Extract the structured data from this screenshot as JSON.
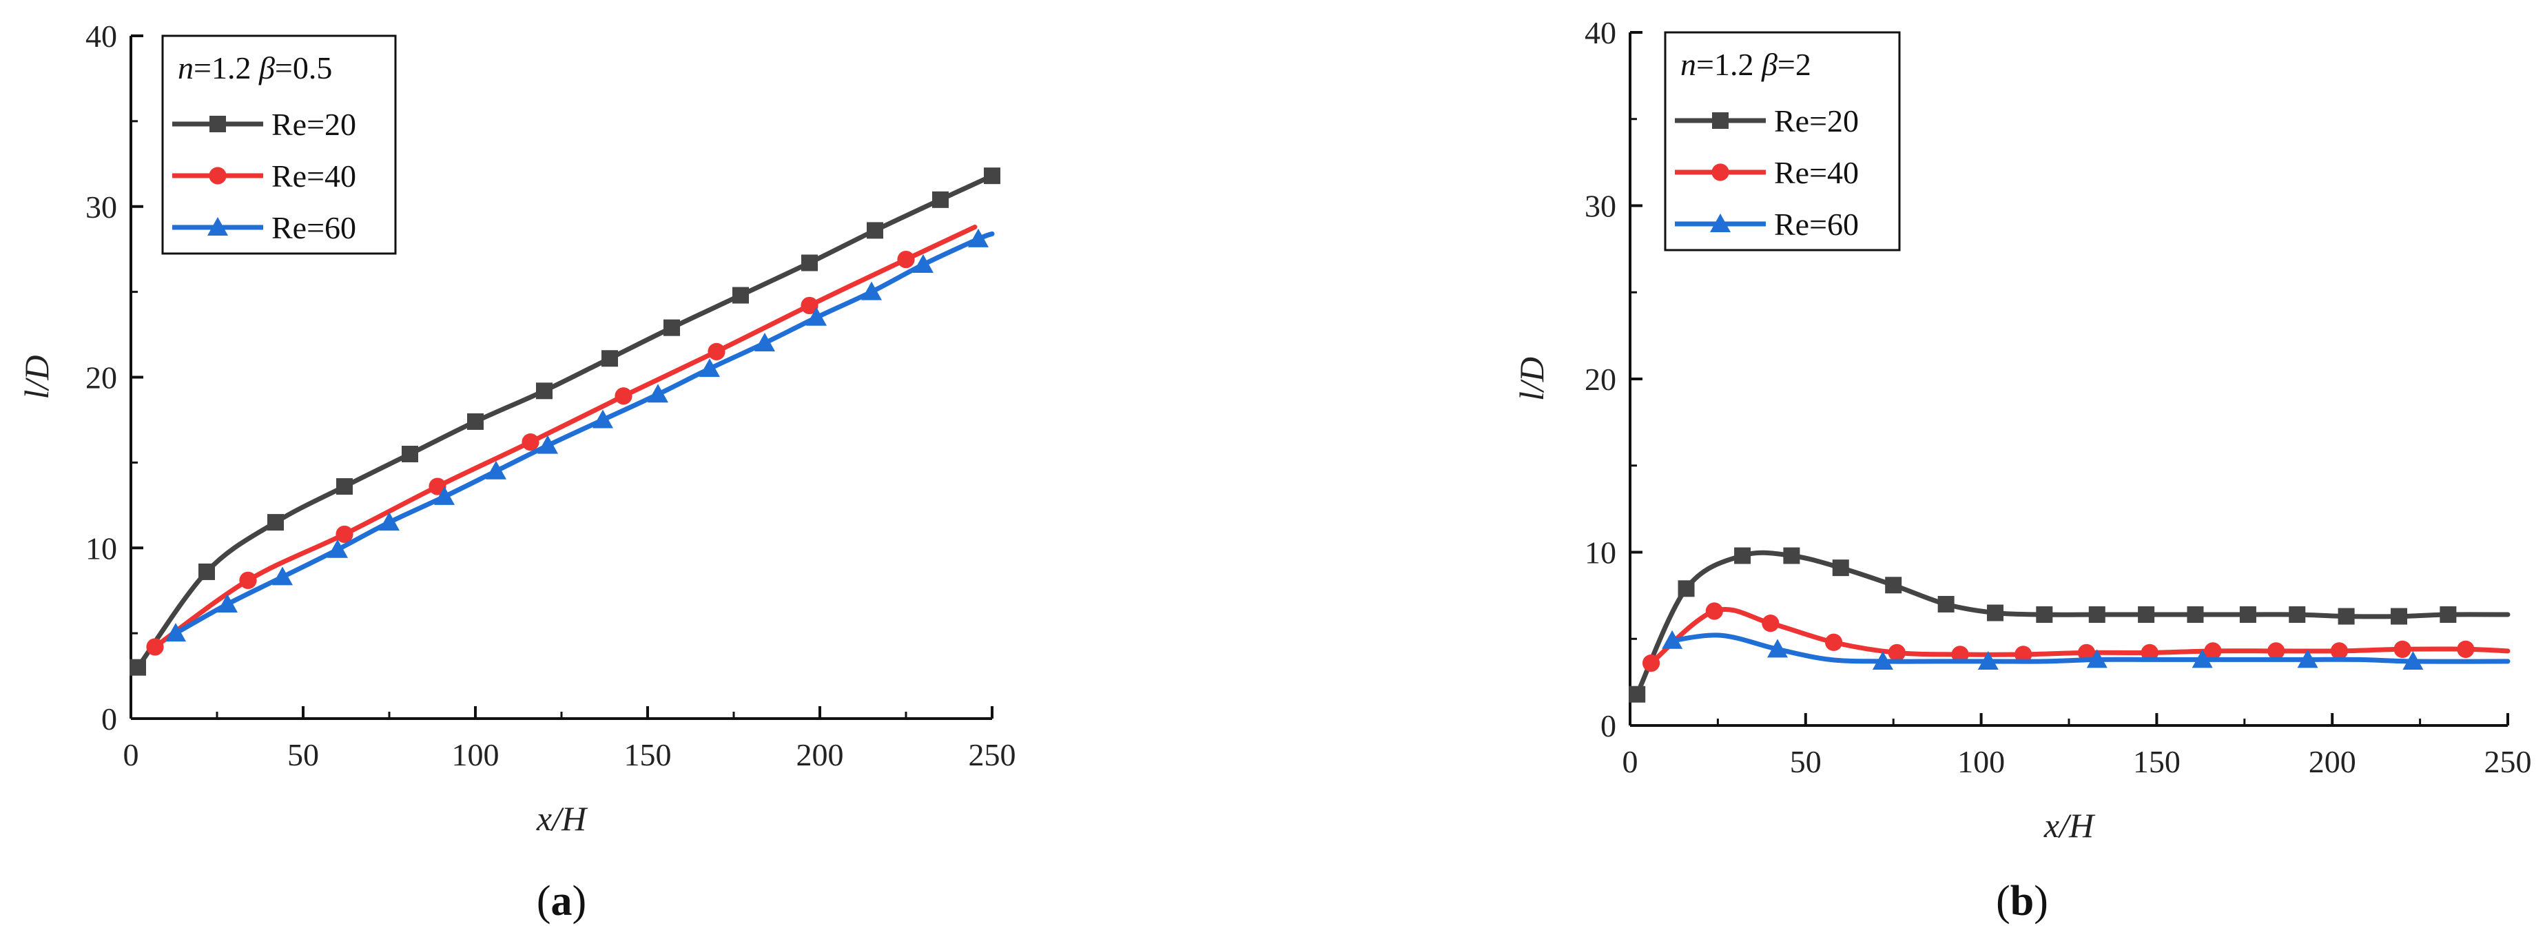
{
  "chart_data": [
    {
      "type": "line",
      "panel": "a",
      "caption_open": "(",
      "caption_letter": "a",
      "caption_close": ")",
      "legend_title_n": "n",
      "legend_title_n_value": "=1.2 ",
      "legend_title_beta": "β",
      "legend_title_beta_value": "=0.5",
      "xlabel": "x/H",
      "ylabel": "l/D",
      "xlim": [
        0,
        250
      ],
      "ylim": [
        0,
        40
      ],
      "xticks": [
        0,
        50,
        100,
        150,
        200,
        250
      ],
      "yticks": [
        0,
        10,
        20,
        30,
        40
      ],
      "legend_position": "top-left",
      "series": [
        {
          "name": "Re=20",
          "color": "#444444",
          "marker": "square",
          "x": [
            2,
            22,
            42,
            62,
            81,
            100,
            120,
            139,
            157,
            177,
            197,
            216,
            235,
            250
          ],
          "y": [
            3.0,
            8.6,
            11.5,
            13.6,
            15.5,
            17.4,
            19.2,
            21.1,
            22.9,
            24.8,
            26.7,
            28.6,
            30.4,
            31.8
          ]
        },
        {
          "name": "Re=40",
          "color": "#ee3333",
          "marker": "circle",
          "x": [
            7,
            34,
            62,
            89,
            116,
            143,
            170,
            197,
            225,
            245
          ],
          "y": [
            4.2,
            8.1,
            10.8,
            13.6,
            16.2,
            18.9,
            21.5,
            24.2,
            26.9,
            28.8
          ],
          "marker_x": [
            7,
            34,
            62,
            89,
            116,
            143,
            170,
            197,
            225
          ]
        },
        {
          "name": "Re=60",
          "color": "#1f6fd6",
          "marker": "triangle",
          "x": [
            13,
            28,
            44,
            60,
            75,
            91,
            106,
            121,
            137,
            153,
            168,
            184,
            199,
            215,
            230,
            246,
            250
          ],
          "y": [
            5.0,
            6.7,
            8.3,
            9.9,
            11.5,
            13.0,
            14.5,
            16.0,
            17.5,
            19.0,
            20.5,
            22.0,
            23.5,
            25.0,
            26.6,
            28.1,
            28.4
          ],
          "marker_x": [
            13,
            28,
            44,
            60,
            75,
            91,
            106,
            121,
            137,
            153,
            168,
            184,
            199,
            215,
            230,
            246
          ]
        }
      ]
    },
    {
      "type": "line",
      "panel": "b",
      "caption_open": "(",
      "caption_letter": "b",
      "caption_close": ")",
      "legend_title_n": "n",
      "legend_title_n_value": "=1.2 ",
      "legend_title_beta": "β",
      "legend_title_beta_value": "=2",
      "xlabel": "x/H",
      "ylabel": "l/D",
      "xlim": [
        0,
        250
      ],
      "ylim": [
        0,
        40
      ],
      "xticks": [
        0,
        50,
        100,
        150,
        200,
        250
      ],
      "yticks": [
        0,
        10,
        20,
        30,
        40
      ],
      "legend_position": "top-left",
      "series": [
        {
          "name": "Re=20",
          "color": "#444444",
          "marker": "square",
          "x": [
            2,
            16,
            32,
            46,
            60,
            75,
            90,
            104,
            118,
            133,
            147,
            161,
            176,
            190,
            204,
            219,
            233,
            250
          ],
          "y": [
            1.8,
            7.9,
            9.8,
            9.8,
            9.1,
            8.1,
            7.0,
            6.5,
            6.4,
            6.4,
            6.4,
            6.4,
            6.4,
            6.4,
            6.3,
            6.3,
            6.4,
            6.4
          ],
          "marker_x": [
            2,
            16,
            32,
            46,
            60,
            75,
            90,
            104,
            118,
            133,
            147,
            161,
            176,
            190,
            204,
            219,
            233
          ]
        },
        {
          "name": "Re=40",
          "color": "#ee3333",
          "marker": "circle",
          "x": [
            6,
            24,
            40,
            58,
            76,
            94,
            112,
            130,
            148,
            166,
            184,
            202,
            220,
            238,
            250
          ],
          "y": [
            3.6,
            6.6,
            5.9,
            4.8,
            4.2,
            4.1,
            4.1,
            4.2,
            4.2,
            4.3,
            4.3,
            4.3,
            4.4,
            4.4,
            4.3
          ],
          "marker_x": [
            6,
            24,
            40,
            58,
            76,
            94,
            112,
            130,
            148,
            166,
            184,
            202,
            220,
            238
          ]
        },
        {
          "name": "Re=60",
          "color": "#1f6fd6",
          "marker": "triangle",
          "x": [
            12,
            26,
            42,
            57,
            72,
            87,
            102,
            118,
            133,
            148,
            163,
            178,
            193,
            208,
            223,
            250
          ],
          "y": [
            4.9,
            5.2,
            4.4,
            3.8,
            3.7,
            3.7,
            3.7,
            3.7,
            3.8,
            3.8,
            3.8,
            3.8,
            3.8,
            3.8,
            3.7,
            3.7
          ],
          "marker_x": [
            12,
            42,
            72,
            102,
            133,
            163,
            193,
            223
          ]
        }
      ]
    }
  ]
}
